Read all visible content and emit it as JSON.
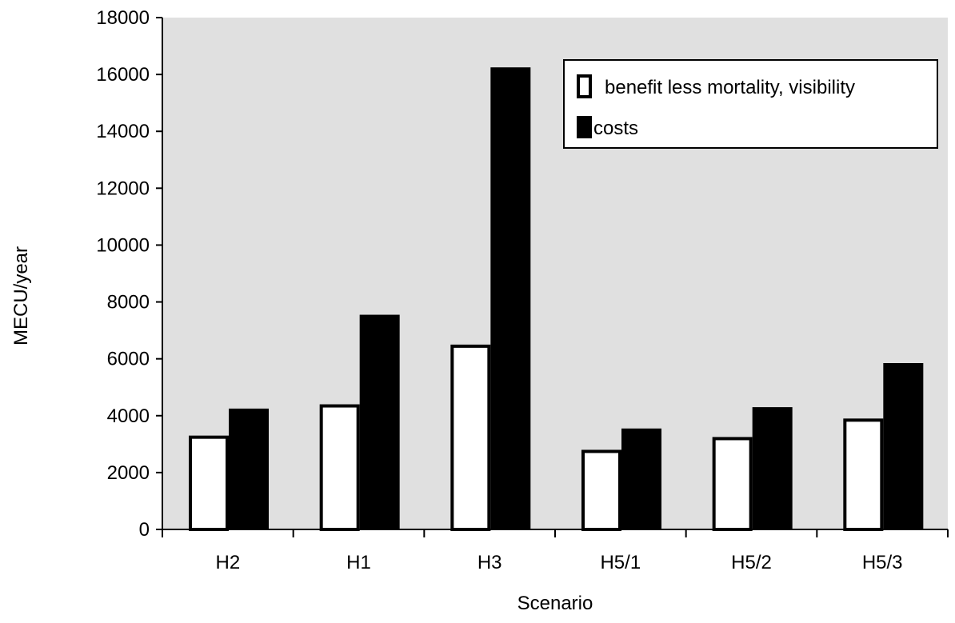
{
  "chart_data": {
    "type": "bar",
    "title": "",
    "xlabel": "Scenario",
    "ylabel": "MECU/year",
    "ylim": [
      0,
      18000
    ],
    "yticks": [
      0,
      2000,
      4000,
      6000,
      8000,
      10000,
      12000,
      14000,
      16000,
      18000
    ],
    "categories": [
      "H2",
      "H1",
      "H3",
      "H5/1",
      "H5/2",
      "H5/3"
    ],
    "series": [
      {
        "name": "benefit less mortality, visibility",
        "color": "#ffffff",
        "values": [
          3300,
          4400,
          6500,
          2800,
          3250,
          3900
        ]
      },
      {
        "name": "costs",
        "color": "#000000",
        "values": [
          4250,
          7550,
          16250,
          3550,
          4300,
          5850
        ]
      }
    ],
    "legend_position": "top-right",
    "plot_background": "#e0e0e0",
    "grid": false
  }
}
